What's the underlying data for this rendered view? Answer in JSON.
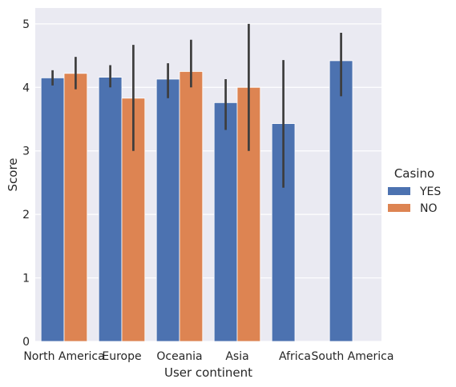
{
  "chart_data": {
    "type": "bar",
    "title": "",
    "xlabel": "User continent",
    "ylabel": "Score",
    "ylim": [
      0,
      5.25
    ],
    "yticks": [
      0,
      1,
      2,
      3,
      4,
      5
    ],
    "grid": true,
    "legend_placement": "right",
    "legend_title": "Casino",
    "categories": [
      "North America",
      "Europe",
      "Oceania",
      "Asia",
      "Africa",
      "South America"
    ],
    "series": [
      {
        "name": "YES",
        "color": "#4c72b0",
        "values": [
          4.15,
          4.16,
          4.13,
          3.76,
          3.43,
          4.42
        ],
        "ci_low": [
          4.03,
          4.0,
          3.83,
          3.33,
          2.42,
          3.86
        ],
        "ci_high": [
          4.27,
          4.35,
          4.38,
          4.13,
          4.43,
          4.86
        ]
      },
      {
        "name": "NO",
        "color": "#dd8452",
        "values": [
          4.22,
          3.83,
          4.25,
          4.0,
          null,
          null
        ],
        "ci_low": [
          3.97,
          3.0,
          4.0,
          3.0,
          null,
          null
        ],
        "ci_high": [
          4.48,
          4.67,
          4.75,
          5.0,
          null,
          null
        ]
      }
    ],
    "colors": {
      "background": "#eaeaf2",
      "grid": "#ffffff",
      "errorbar": "#3d3d3d",
      "text": "#262626"
    }
  }
}
